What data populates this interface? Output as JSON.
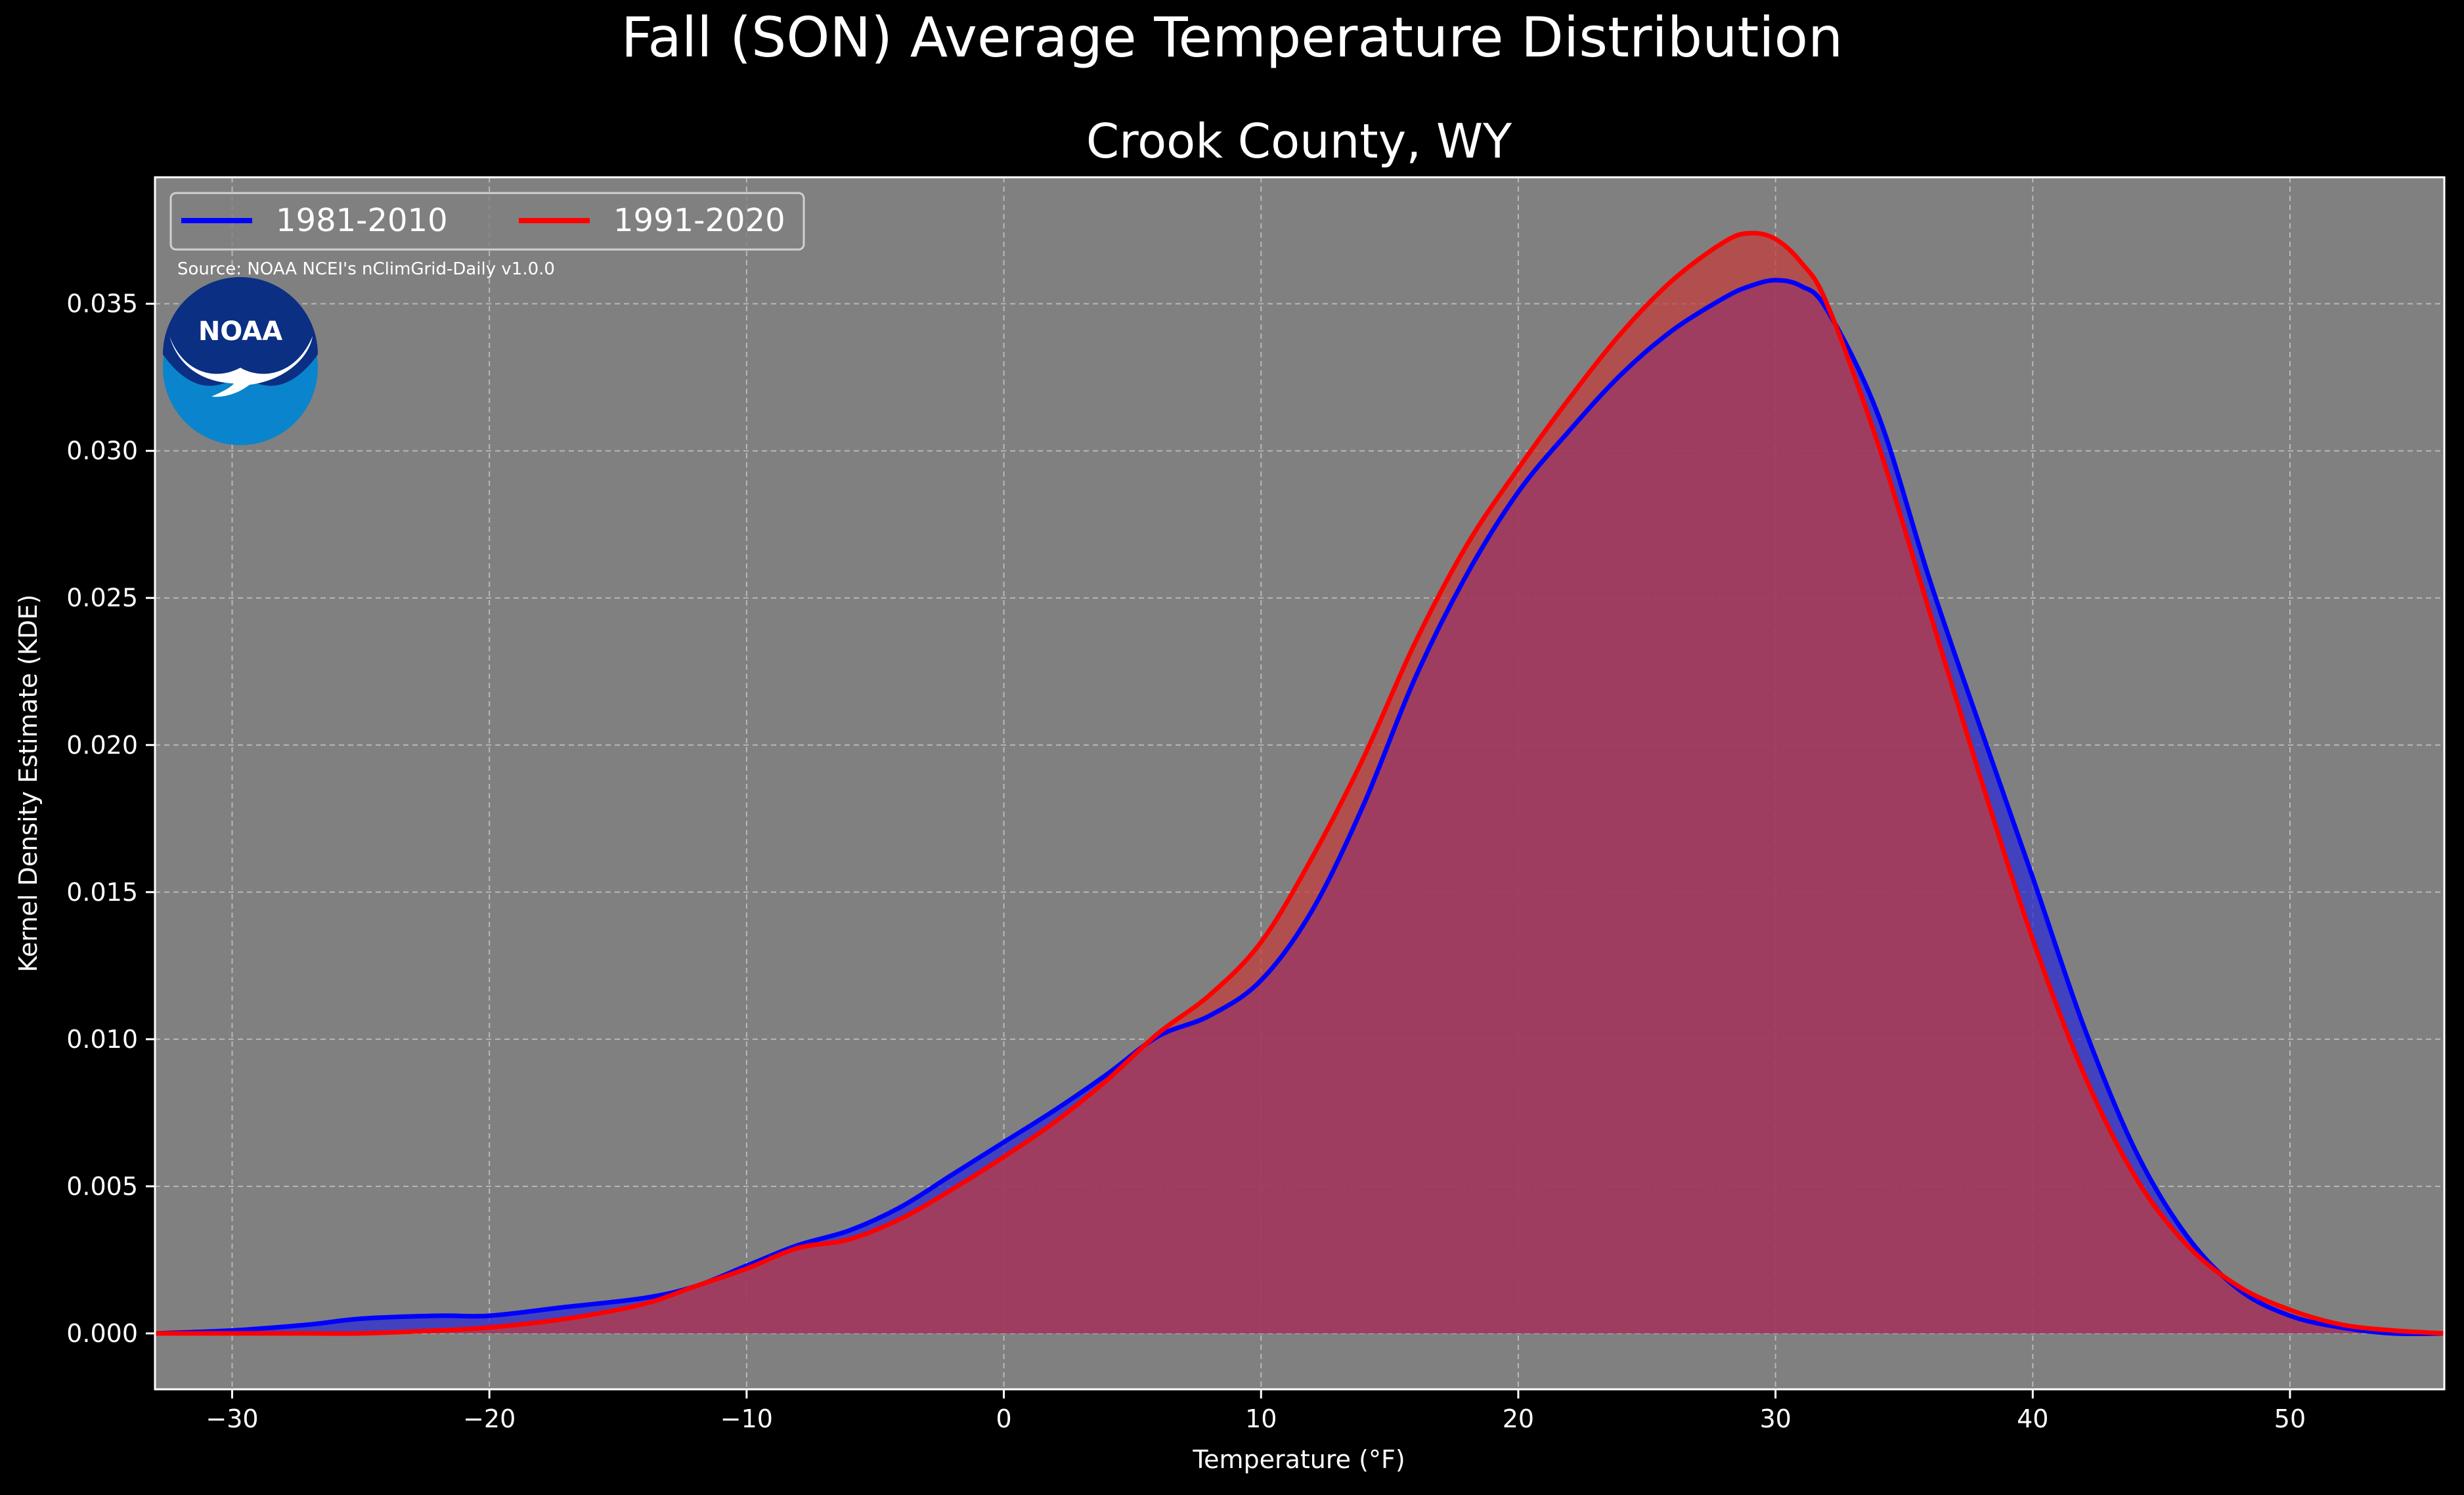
{
  "chart_data": {
    "type": "area",
    "title": "Fall (SON) Average Temperature Distribution",
    "subtitle": "Crook County, WY",
    "xlabel": "Temperature (°F)",
    "ylabel": "Kernel Density Estimate (KDE)",
    "xlim": [
      -33,
      56
    ],
    "ylim": [
      -0.0019,
      0.0393
    ],
    "xticks": [
      -30,
      -20,
      -10,
      0,
      10,
      20,
      30,
      40,
      50
    ],
    "xtick_labels": [
      "−30",
      "−20",
      "−10",
      "0",
      "10",
      "20",
      "30",
      "40",
      "50"
    ],
    "yticks": [
      0.0,
      0.005,
      0.01,
      0.015,
      0.02,
      0.025,
      0.03,
      0.035
    ],
    "ytick_labels": [
      "0.000",
      "0.005",
      "0.010",
      "0.015",
      "0.020",
      "0.025",
      "0.030",
      "0.035"
    ],
    "grid": true,
    "legend_position": "top-left",
    "background": "#808080",
    "series": [
      {
        "name": "1981-2010",
        "color": "#0000ff",
        "fill": "#2a2ad6",
        "x": [
          -33,
          -30,
          -27,
          -25,
          -22,
          -20,
          -17,
          -14,
          -12,
          -10,
          -8,
          -6,
          -4,
          -2,
          0,
          2,
          4,
          6,
          8,
          10,
          12,
          14,
          16,
          18,
          20,
          22,
          24,
          26,
          28,
          29,
          30,
          31,
          32,
          34,
          36,
          38,
          40,
          42,
          44,
          46,
          48,
          50,
          52,
          54,
          56
        ],
        "y": [
          0.0,
          0.0001,
          0.0003,
          0.0005,
          0.0006,
          0.0006,
          0.0009,
          0.0012,
          0.0016,
          0.0023,
          0.003,
          0.0035,
          0.0043,
          0.0054,
          0.0065,
          0.0076,
          0.0088,
          0.0101,
          0.0108,
          0.012,
          0.0144,
          0.018,
          0.0223,
          0.0258,
          0.0286,
          0.0307,
          0.0326,
          0.0341,
          0.0352,
          0.0356,
          0.0358,
          0.0356,
          0.0348,
          0.0312,
          0.0256,
          0.0205,
          0.0155,
          0.0104,
          0.0062,
          0.0033,
          0.0015,
          0.0006,
          0.0002,
          0.0,
          0.0
        ]
      },
      {
        "name": "1991-2020",
        "color": "#ff0000",
        "fill": "#c43c3c",
        "x": [
          -33,
          -30,
          -27,
          -25,
          -22,
          -20,
          -17,
          -14,
          -12,
          -10,
          -8,
          -6,
          -4,
          -2,
          0,
          2,
          4,
          6,
          8,
          10,
          12,
          14,
          16,
          18,
          20,
          22,
          24,
          26,
          28,
          29,
          30,
          31,
          32,
          34,
          36,
          38,
          40,
          42,
          44,
          46,
          48,
          50,
          52,
          54,
          56
        ],
        "y": [
          0.0,
          0.0,
          0.0,
          0.0,
          0.0001,
          0.0002,
          0.0005,
          0.001,
          0.0016,
          0.0022,
          0.0029,
          0.0032,
          0.0039,
          0.0049,
          0.006,
          0.0072,
          0.0086,
          0.0102,
          0.0115,
          0.0133,
          0.0162,
          0.0196,
          0.0235,
          0.0268,
          0.0294,
          0.0318,
          0.034,
          0.0358,
          0.0371,
          0.0374,
          0.0372,
          0.0364,
          0.035,
          0.0302,
          0.0245,
          0.0188,
          0.0134,
          0.0088,
          0.0053,
          0.003,
          0.0016,
          0.0008,
          0.0003,
          0.0001,
          0.0
        ]
      }
    ],
    "annotations": {
      "source": "Source: NOAA NCEI's nClimGrid-Daily v1.0.0",
      "logo_text": "NOAA"
    }
  }
}
